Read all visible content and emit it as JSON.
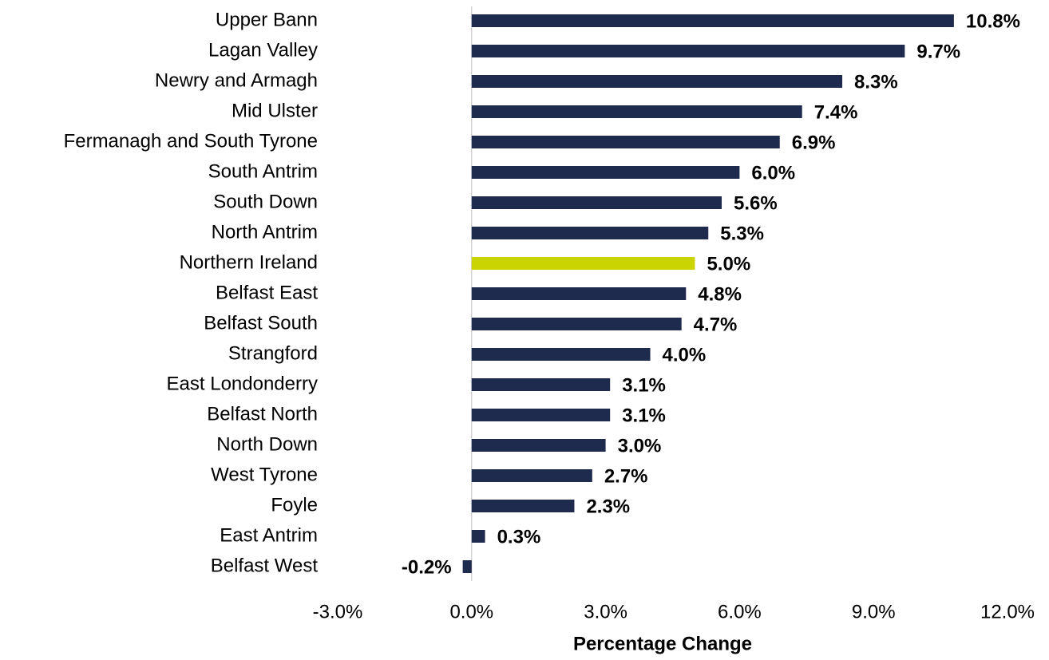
{
  "chart_data": {
    "type": "hbar",
    "x_label": "Percentage Change",
    "categories": [
      "Upper Bann",
      "Lagan Valley",
      "Newry and Armagh",
      "Mid Ulster",
      "Fermanagh and South Tyrone",
      "South Antrim",
      "South Down",
      "North Antrim",
      "Northern Ireland",
      "Belfast East",
      "Belfast South",
      "Strangford",
      "East Londonderry",
      "Belfast North",
      "North Down",
      "West Tyrone",
      "Foyle",
      "East Antrim",
      "Belfast West"
    ],
    "values": [
      10.8,
      9.7,
      8.3,
      7.4,
      6.9,
      6.0,
      5.6,
      5.3,
      5.0,
      4.8,
      4.7,
      4.0,
      3.1,
      3.1,
      3.0,
      2.7,
      2.3,
      0.3,
      -0.2
    ],
    "value_labels": [
      "10.8%",
      "9.7%",
      "8.3%",
      "7.4%",
      "6.9%",
      "6.0%",
      "5.6%",
      "5.3%",
      "5.0%",
      "4.8%",
      "4.7%",
      "4.0%",
      "3.1%",
      "3.1%",
      "3.0%",
      "2.7%",
      "2.3%",
      "0.3%",
      "-0.2%"
    ],
    "colors": [
      "#1f2a4f",
      "#1f2a4f",
      "#1f2a4f",
      "#1f2a4f",
      "#1f2a4f",
      "#1f2a4f",
      "#1f2a4f",
      "#1f2a4f",
      "#c9d400",
      "#1f2a4f",
      "#1f2a4f",
      "#1f2a4f",
      "#1f2a4f",
      "#1f2a4f",
      "#1f2a4f",
      "#1f2a4f",
      "#1f2a4f",
      "#1f2a4f",
      "#1f2a4f"
    ],
    "xlim": [
      -3,
      12
    ],
    "xticks": [
      {
        "value": -3,
        "label": "-3.0%"
      },
      {
        "value": 0,
        "label": "0.0%"
      },
      {
        "value": 3,
        "label": "3.0%"
      },
      {
        "value": 6,
        "label": "6.0%"
      },
      {
        "value": 9,
        "label": "9.0%"
      },
      {
        "value": 12,
        "label": "12.0%"
      }
    ],
    "grid": false
  }
}
